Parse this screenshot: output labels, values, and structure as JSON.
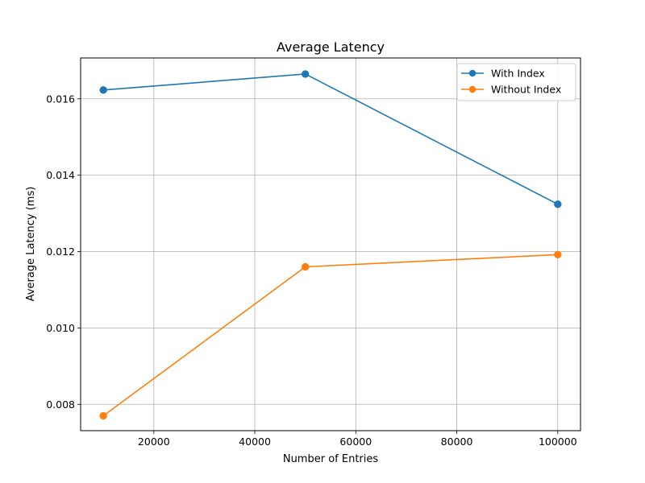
{
  "chart_data": {
    "type": "line",
    "title": "Average Latency",
    "xlabel": "Number of Entries",
    "ylabel": "Average Latency (ms)",
    "x": [
      10000,
      50000,
      100000
    ],
    "xlim": [
      5500,
      104500
    ],
    "ylim": [
      0.00731,
      0.01707
    ],
    "xticks": [
      20000,
      40000,
      60000,
      80000,
      100000
    ],
    "yticks": [
      0.008,
      0.01,
      0.012,
      0.014,
      0.016
    ],
    "xtick_labels": [
      "20000",
      "40000",
      "60000",
      "80000",
      "100000"
    ],
    "ytick_labels": [
      "0.008",
      "0.010",
      "0.012",
      "0.014",
      "0.016"
    ],
    "grid": true,
    "legend_position": "top-right",
    "series": [
      {
        "name": "With Index",
        "color": "#1f77b4",
        "marker": "circle",
        "values": [
          0.01623,
          0.01665,
          0.01324
        ]
      },
      {
        "name": "Without Index",
        "color": "#ff7f0e",
        "marker": "circle",
        "values": [
          0.0077,
          0.0116,
          0.01192
        ]
      }
    ]
  }
}
